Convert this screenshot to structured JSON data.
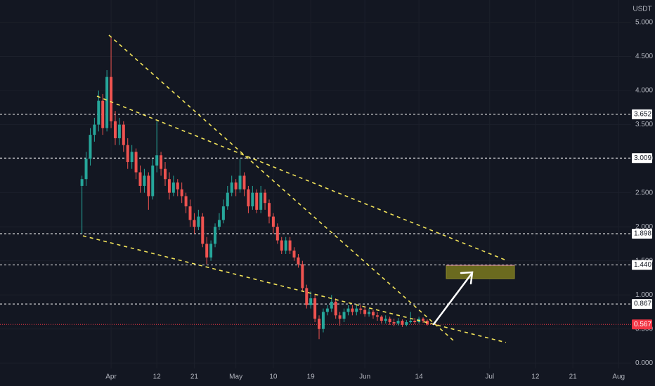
{
  "chart_data": {
    "type": "candlestick",
    "currency": "USDT",
    "up_color": "#26a69a",
    "down_color": "#ef5350",
    "x": [
      -7,
      -6,
      -5,
      -4,
      -3,
      -2,
      -1,
      0,
      1,
      2,
      3,
      4,
      5,
      6,
      7,
      8,
      9,
      10,
      11,
      12,
      13,
      14,
      15,
      16,
      17,
      18,
      19,
      20,
      21,
      22,
      23,
      24,
      25,
      26,
      27,
      28,
      29,
      30,
      31,
      32,
      33,
      34,
      35,
      36,
      37,
      38,
      39,
      40,
      41,
      42,
      43,
      44,
      45,
      46,
      47,
      48,
      49,
      50,
      51,
      52,
      53,
      54,
      55,
      56,
      57,
      58,
      59,
      60,
      61,
      62,
      63,
      64,
      65,
      66,
      67,
      68,
      69,
      70,
      71,
      72,
      73,
      74,
      75,
      76
    ],
    "open": [
      2.6,
      2.7,
      3.0,
      3.35,
      3.5,
      3.85,
      3.45,
      4.2,
      3.55,
      3.3,
      3.5,
      3.2,
      2.95,
      3.1,
      2.8,
      2.6,
      2.75,
      2.45,
      2.9,
      3.05,
      2.85,
      2.7,
      2.5,
      2.65,
      2.55,
      2.45,
      2.3,
      2.1,
      2.0,
      2.15,
      1.75,
      1.55,
      1.75,
      2.0,
      2.1,
      2.3,
      2.5,
      2.65,
      2.55,
      2.75,
      2.55,
      2.3,
      2.5,
      2.25,
      2.5,
      2.35,
      2.15,
      2.0,
      1.8,
      1.65,
      1.8,
      1.65,
      1.55,
      1.45,
      1.1,
      0.85,
      0.95,
      0.65,
      0.5,
      0.75,
      0.8,
      0.9,
      0.7,
      0.65,
      0.75,
      0.8,
      0.75,
      0.8,
      0.78,
      0.72,
      0.75,
      0.7,
      0.68,
      0.62,
      0.65,
      0.6,
      0.58,
      0.62,
      0.56,
      0.6,
      0.62,
      0.6,
      0.65,
      0.62
    ],
    "high": [
      2.75,
      3.1,
      3.45,
      3.6,
      4.0,
      3.95,
      4.3,
      4.78,
      3.7,
      3.6,
      3.55,
      3.3,
      3.2,
      3.15,
      2.9,
      2.85,
      2.8,
      3.0,
      3.55,
      3.1,
      2.95,
      2.8,
      2.75,
      2.7,
      2.65,
      2.5,
      2.4,
      2.2,
      2.25,
      2.2,
      1.85,
      1.8,
      2.05,
      2.2,
      2.4,
      2.6,
      2.75,
      2.7,
      3.0,
      2.8,
      2.6,
      2.6,
      2.55,
      2.6,
      2.55,
      2.4,
      2.2,
      2.05,
      1.85,
      1.85,
      1.85,
      1.7,
      1.6,
      1.5,
      1.15,
      1.05,
      1.0,
      0.7,
      0.8,
      0.85,
      1.0,
      0.95,
      0.75,
      0.8,
      0.85,
      0.85,
      0.85,
      0.85,
      0.82,
      0.8,
      0.78,
      0.75,
      0.7,
      0.7,
      0.68,
      0.65,
      0.66,
      0.64,
      0.63,
      0.75,
      0.66,
      0.68,
      0.67,
      0.64
    ],
    "low": [
      1.9,
      2.6,
      2.9,
      3.25,
      3.4,
      3.35,
      3.4,
      3.45,
      3.2,
      3.2,
      3.1,
      2.85,
      2.85,
      2.7,
      2.5,
      2.5,
      2.25,
      2.4,
      2.8,
      2.75,
      2.6,
      2.4,
      2.45,
      2.45,
      2.35,
      2.2,
      2.0,
      1.9,
      1.95,
      1.7,
      1.45,
      1.5,
      1.7,
      1.95,
      2.05,
      2.25,
      2.45,
      2.45,
      2.5,
      2.45,
      2.2,
      2.25,
      2.2,
      2.2,
      2.25,
      2.05,
      1.9,
      1.75,
      1.6,
      1.6,
      1.6,
      1.5,
      1.4,
      1.05,
      0.8,
      0.8,
      0.6,
      0.35,
      0.45,
      0.7,
      0.75,
      0.65,
      0.55,
      0.6,
      0.7,
      0.7,
      0.7,
      0.72,
      0.68,
      0.68,
      0.65,
      0.62,
      0.58,
      0.58,
      0.56,
      0.54,
      0.55,
      0.53,
      0.54,
      0.58,
      0.57,
      0.58,
      0.59,
      0.55
    ],
    "close": [
      2.7,
      3.0,
      3.35,
      3.5,
      3.85,
      3.45,
      4.2,
      3.55,
      3.3,
      3.5,
      3.2,
      2.95,
      3.1,
      2.8,
      2.6,
      2.75,
      2.45,
      2.9,
      3.05,
      2.85,
      2.7,
      2.5,
      2.65,
      2.55,
      2.45,
      2.3,
      2.1,
      2.0,
      2.15,
      1.75,
      1.55,
      1.75,
      2.0,
      2.1,
      2.3,
      2.5,
      2.65,
      2.55,
      2.75,
      2.55,
      2.3,
      2.5,
      2.25,
      2.5,
      2.35,
      2.15,
      2.0,
      1.8,
      1.65,
      1.8,
      1.65,
      1.55,
      1.45,
      1.1,
      0.85,
      0.95,
      0.65,
      0.5,
      0.75,
      0.8,
      0.9,
      0.7,
      0.65,
      0.75,
      0.8,
      0.75,
      0.8,
      0.78,
      0.72,
      0.75,
      0.7,
      0.68,
      0.62,
      0.65,
      0.6,
      0.58,
      0.62,
      0.56,
      0.6,
      0.62,
      0.6,
      0.65,
      0.62,
      0.567
    ],
    "xlim": [
      -26.7,
      125.0
    ],
    "xticks": [
      {
        "value": 0,
        "label": "Apr"
      },
      {
        "value": 11,
        "label": "12"
      },
      {
        "value": 20,
        "label": "21"
      },
      {
        "value": 30,
        "label": "May"
      },
      {
        "value": 39,
        "label": "10"
      },
      {
        "value": 48,
        "label": "19"
      },
      {
        "value": 61,
        "label": "Jun"
      },
      {
        "value": 74,
        "label": "14"
      },
      {
        "value": 91,
        "label": "Jul"
      },
      {
        "value": 102,
        "label": "12"
      },
      {
        "value": 111,
        "label": "21"
      },
      {
        "value": 122,
        "label": "Aug"
      }
    ],
    "ylim": [
      -0.08,
      5.33
    ],
    "yticks": [
      {
        "value": 0,
        "label": "0.000"
      },
      {
        "value": 0.5,
        "label": "0.500"
      },
      {
        "value": 1,
        "label": "1.000"
      },
      {
        "value": 1.5,
        "label": "1.500"
      },
      {
        "value": 2,
        "label": "2.000"
      },
      {
        "value": 2.5,
        "label": "2.500"
      },
      {
        "value": 3,
        "label": "3.000"
      },
      {
        "value": 3.5,
        "label": "3.500"
      },
      {
        "value": 4,
        "label": "4.000"
      },
      {
        "value": 4.5,
        "label": "4.500"
      },
      {
        "value": 5,
        "label": "5.000"
      }
    ],
    "levels": [
      3.652,
      3.009,
      1.898,
      {
        "value": 1.44,
        "label": "1.440"
      },
      0.867
    ],
    "last_price": 0.567,
    "grid": true
  }
}
